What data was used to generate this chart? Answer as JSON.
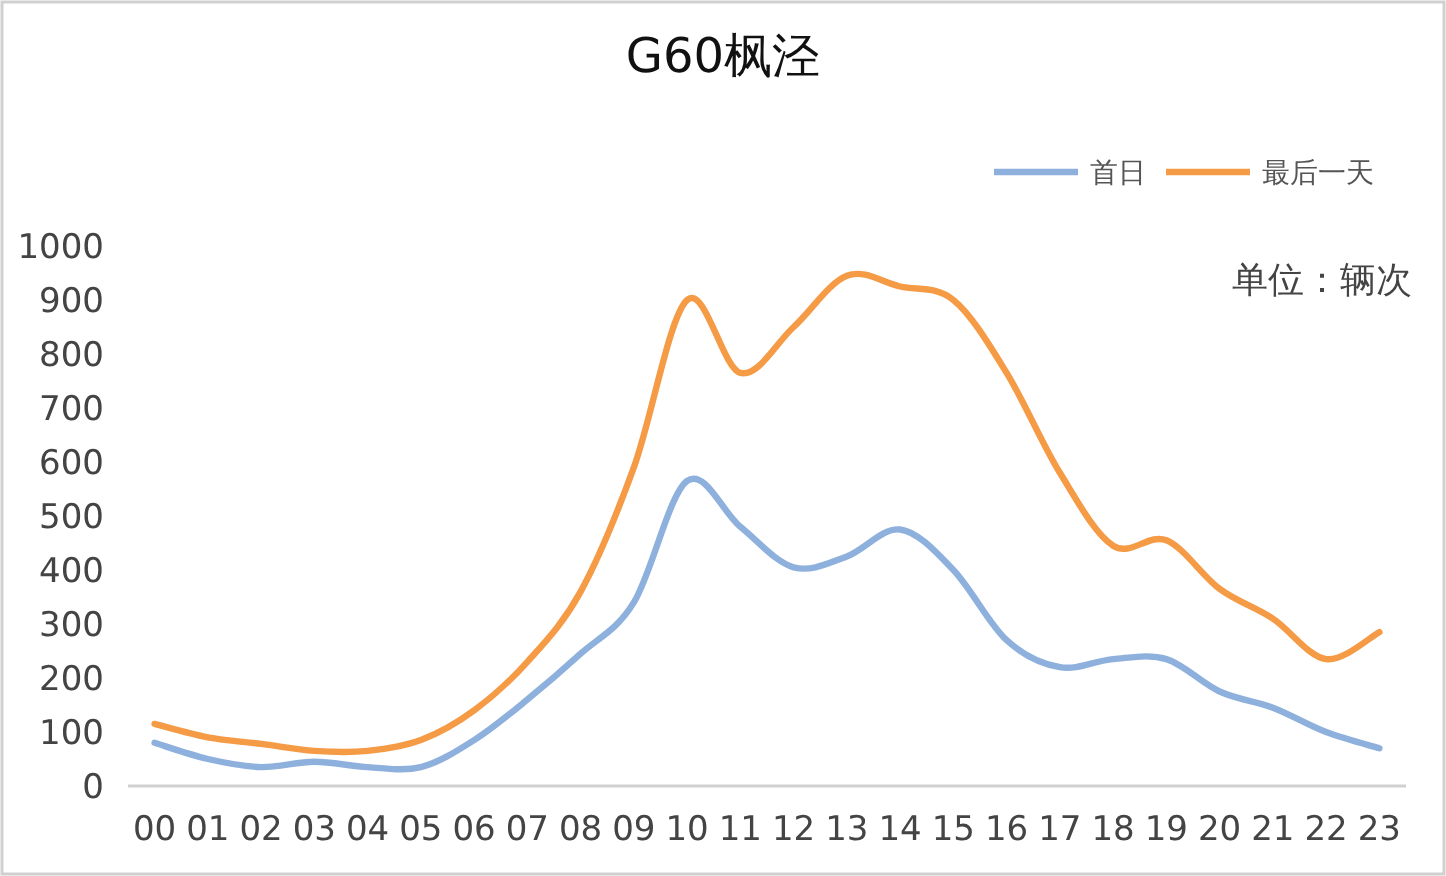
{
  "chart_data": {
    "type": "line",
    "title": "G60枫泾",
    "annotations": [
      "单位：辆次"
    ],
    "categories": [
      "00",
      "01",
      "02",
      "03",
      "04",
      "05",
      "06",
      "07",
      "08",
      "09",
      "10",
      "11",
      "12",
      "13",
      "14",
      "15",
      "16",
      "17",
      "18",
      "19",
      "20",
      "21",
      "22",
      "23"
    ],
    "series": [
      {
        "name": "首日",
        "color": "#8eb0dc",
        "values": [
          80,
          50,
          35,
          45,
          35,
          35,
          85,
          160,
          245,
          340,
          565,
          480,
          405,
          425,
          475,
          400,
          270,
          220,
          235,
          235,
          175,
          145,
          100,
          70
        ]
      },
      {
        "name": "最后一天",
        "color": "#f59a45",
        "values": [
          115,
          90,
          78,
          65,
          65,
          85,
          140,
          230,
          360,
          590,
          900,
          765,
          850,
          945,
          925,
          900,
          765,
          580,
          445,
          455,
          365,
          310,
          235,
          285
        ]
      }
    ],
    "ylim": [
      0,
      1000
    ],
    "yticks": [
      0,
      100,
      200,
      300,
      400,
      500,
      600,
      700,
      800,
      900,
      1000
    ],
    "grid": false,
    "legend": "top right",
    "marker": "none",
    "line_style": "solid"
  }
}
